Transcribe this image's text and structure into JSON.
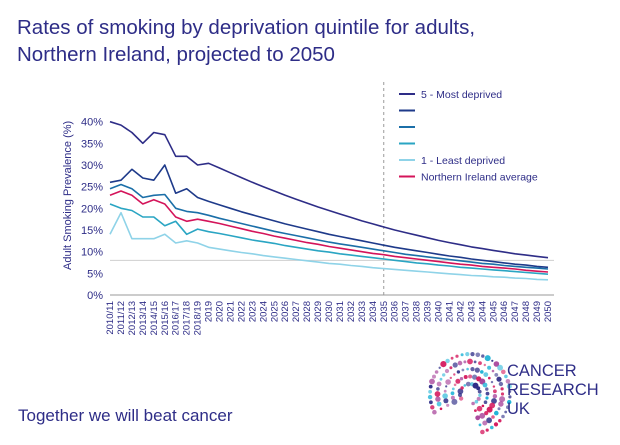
{
  "title": {
    "line1": "Rates of smoking by deprivation quintile for adults,",
    "line2": "Northern Ireland, projected to 2050"
  },
  "tagline": "Together we will beat cancer",
  "logo": {
    "line1": "CANCER",
    "line2": "RESEARCH",
    "line3": "UK",
    "icon": "cancer-research-uk-dot-logo"
  },
  "chart_data": {
    "type": "line",
    "title": "Rates of smoking by deprivation quintile for adults, Northern Ireland, projected to 2050",
    "xlabel": "",
    "ylabel": "Adult Smoking Prevalence (%)",
    "ylim": [
      0,
      45
    ],
    "yticks": [
      0,
      5,
      10,
      15,
      20,
      25,
      30,
      35,
      40
    ],
    "ytick_labels": [
      "0%",
      "5%",
      "10%",
      "15%",
      "20%",
      "25%",
      "30%",
      "35%",
      "40%"
    ],
    "reference_line_y": 8,
    "projection_start": "2035",
    "categories": [
      "2010/11",
      "2011/12",
      "2012/13",
      "2013/14",
      "2014/15",
      "2015/16",
      "2016/17",
      "2017/18",
      "2018/19",
      "2019",
      "2020",
      "2021",
      "2022",
      "2023",
      "2024",
      "2025",
      "2026",
      "2027",
      "2028",
      "2029",
      "2030",
      "2031",
      "2032",
      "2033",
      "2034",
      "2035",
      "2036",
      "2037",
      "2038",
      "2039",
      "2040",
      "2041",
      "2042",
      "2043",
      "2044",
      "2045",
      "2046",
      "2047",
      "2048",
      "2049",
      "2050"
    ],
    "legend_position": "top-right",
    "series": [
      {
        "name": "5 - Most deprived",
        "color": "#2e2d87",
        "values": [
          40,
          39.2,
          37.5,
          35,
          37.5,
          37,
          32,
          32,
          30,
          30.4,
          29.3,
          28.2,
          27.1,
          26,
          25,
          24,
          23,
          22.1,
          21.2,
          20.3,
          19.5,
          18.7,
          17.9,
          17.1,
          16.4,
          15.7,
          15,
          14.4,
          13.8,
          13.2,
          12.6,
          12.1,
          11.6,
          11.1,
          10.7,
          10.3,
          9.9,
          9.5,
          9.2,
          8.9,
          8.6
        ]
      },
      {
        "name": "",
        "color": "#1e3a8a",
        "values": [
          26,
          26.5,
          29,
          27,
          26.5,
          30,
          23.5,
          24.5,
          22.5,
          21.6,
          20.8,
          20,
          19.2,
          18.5,
          17.8,
          17.1,
          16.4,
          15.8,
          15.2,
          14.6,
          14,
          13.5,
          13,
          12.5,
          12,
          11.5,
          11,
          10.6,
          10.2,
          9.8,
          9.4,
          9,
          8.7,
          8.3,
          8,
          7.7,
          7.4,
          7.1,
          6.9,
          6.6,
          6.4
        ]
      },
      {
        "name": "",
        "color": "#1b6fa8",
        "values": [
          24.5,
          25.5,
          24.5,
          22.5,
          23,
          23.2,
          20,
          19.3,
          19,
          18.4,
          17.7,
          17.1,
          16.5,
          15.9,
          15.3,
          14.7,
          14.2,
          13.7,
          13.2,
          12.7,
          12.2,
          11.8,
          11.4,
          11,
          10.6,
          10.2,
          9.8,
          9.4,
          9.1,
          8.8,
          8.5,
          8.2,
          7.9,
          7.6,
          7.3,
          7.1,
          6.8,
          6.6,
          6.4,
          6.2,
          6
        ]
      },
      {
        "name": "",
        "color": "#2aa5c3",
        "values": [
          21,
          20,
          19.5,
          18,
          18,
          16,
          17,
          14,
          15.2,
          14.6,
          14.2,
          13.7,
          13.2,
          12.7,
          12.3,
          11.9,
          11.4,
          11,
          10.6,
          10.2,
          9.9,
          9.5,
          9.2,
          8.9,
          8.6,
          8.3,
          8,
          7.7,
          7.4,
          7.2,
          6.9,
          6.7,
          6.4,
          6.2,
          6,
          5.8,
          5.6,
          5.4,
          5.2,
          5,
          4.8
        ]
      },
      {
        "name": "1 - Least deprived",
        "color": "#8fd3e8",
        "values": [
          14,
          19,
          13,
          13,
          13,
          14,
          12,
          12.5,
          12,
          11,
          10.6,
          10.2,
          9.8,
          9.5,
          9.1,
          8.8,
          8.5,
          8.2,
          7.9,
          7.6,
          7.3,
          7.1,
          6.8,
          6.6,
          6.3,
          6.1,
          5.9,
          5.7,
          5.5,
          5.3,
          5.1,
          4.9,
          4.7,
          4.5,
          4.4,
          4.2,
          4.1,
          3.9,
          3.8,
          3.6,
          3.5
        ]
      },
      {
        "name": "Northern Ireland average",
        "color": "#d4145a",
        "values": [
          23,
          24,
          23,
          21,
          22,
          21,
          18,
          17,
          17.5,
          17,
          16.5,
          15.9,
          15.3,
          14.7,
          14.2,
          13.6,
          13.1,
          12.6,
          12.1,
          11.7,
          11.2,
          10.8,
          10.4,
          10,
          9.6,
          9.3,
          8.9,
          8.6,
          8.3,
          8,
          7.7,
          7.4,
          7.1,
          6.9,
          6.6,
          6.4,
          6.2,
          6,
          5.7,
          5.5,
          5.3
        ]
      }
    ],
    "legend_order": [
      0,
      1,
      2,
      3,
      4,
      5
    ]
  }
}
